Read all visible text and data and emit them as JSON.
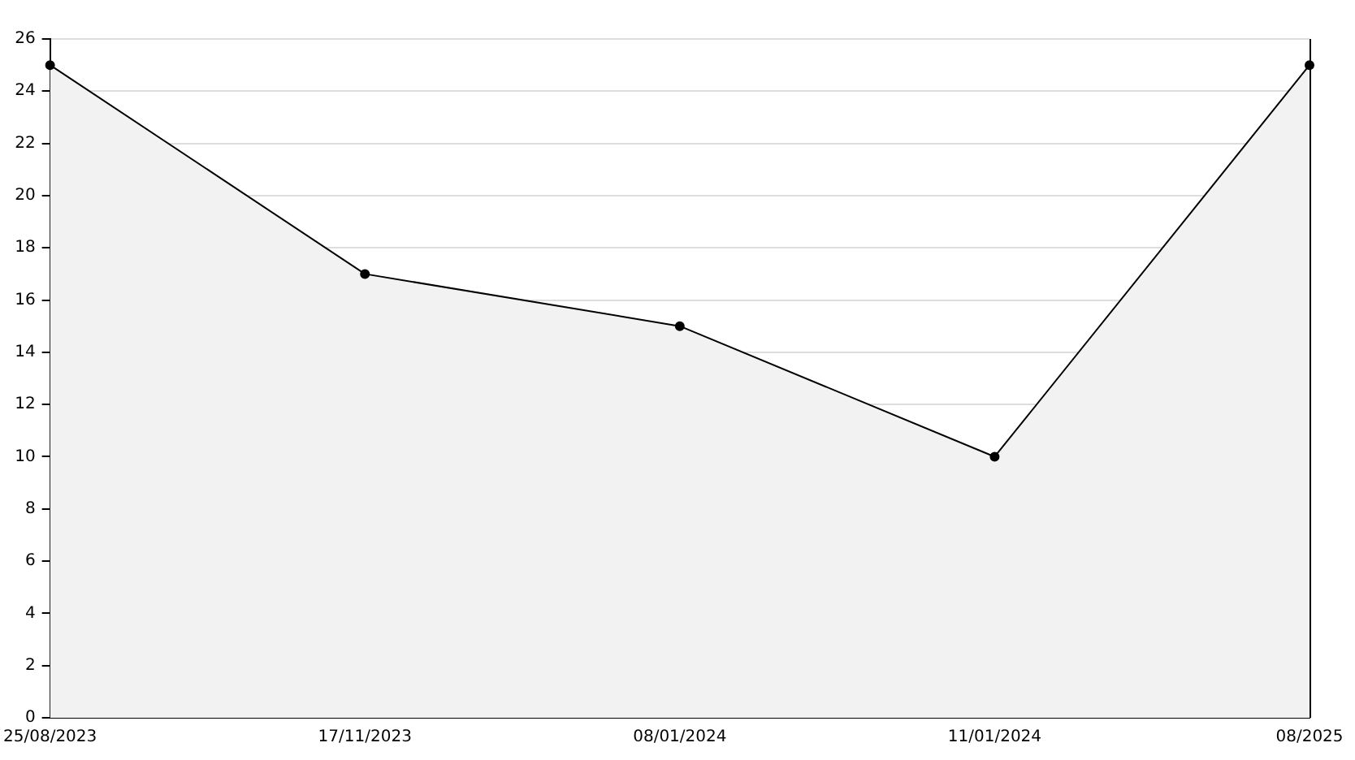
{
  "chart_data": {
    "type": "area",
    "categories": [
      "25/08/2023",
      "17/11/2023",
      "08/01/2024",
      "11/01/2024",
      "08/2025"
    ],
    "series": [
      {
        "color": "#000000",
        "values": [
          25,
          17,
          15,
          10,
          25
        ]
      }
    ],
    "ylim": [
      0,
      26
    ],
    "yticks": [
      0,
      2,
      4,
      6,
      8,
      10,
      12,
      14,
      16,
      18,
      20,
      22,
      24,
      26
    ],
    "grid": "y",
    "marker": "circle",
    "legend": false
  }
}
